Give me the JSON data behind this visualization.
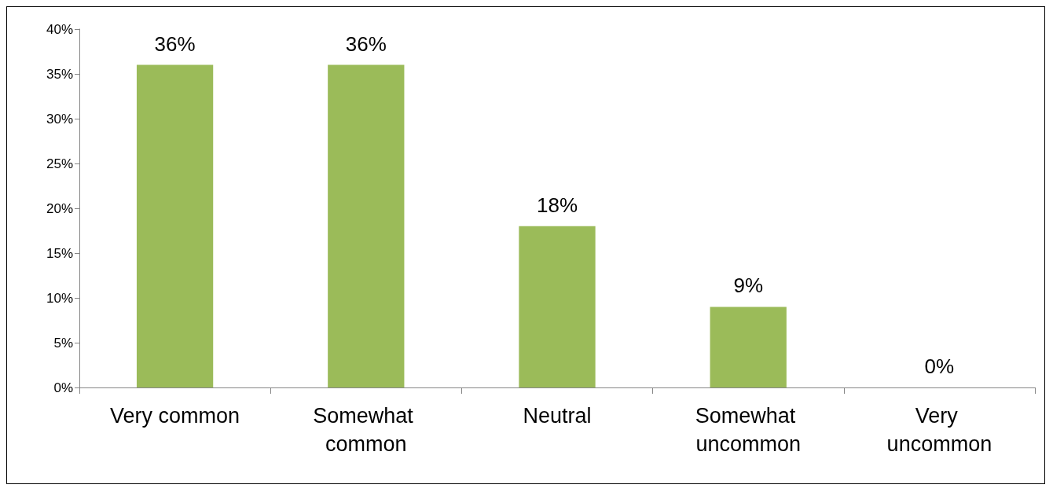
{
  "chart_data": {
    "type": "bar",
    "categories": [
      "Very common",
      "Somewhat common",
      "Neutral",
      "Somewhat uncommon",
      "Very uncommon"
    ],
    "values": [
      36,
      36,
      18,
      9,
      0
    ],
    "value_labels": [
      "36%",
      "36%",
      "18%",
      "9%",
      "0%"
    ],
    "color": "#9bbb59",
    "ylim": [
      0,
      40
    ],
    "yticks": [
      {
        "value": 0,
        "label": "0%"
      },
      {
        "value": 5,
        "label": "5%"
      },
      {
        "value": 10,
        "label": "10%"
      },
      {
        "value": 15,
        "label": "15%"
      },
      {
        "value": 20,
        "label": "20%"
      },
      {
        "value": 25,
        "label": "25%"
      },
      {
        "value": 30,
        "label": "30%"
      },
      {
        "value": 35,
        "label": "35%"
      },
      {
        "value": 40,
        "label": "40%"
      }
    ],
    "grid": false
  }
}
